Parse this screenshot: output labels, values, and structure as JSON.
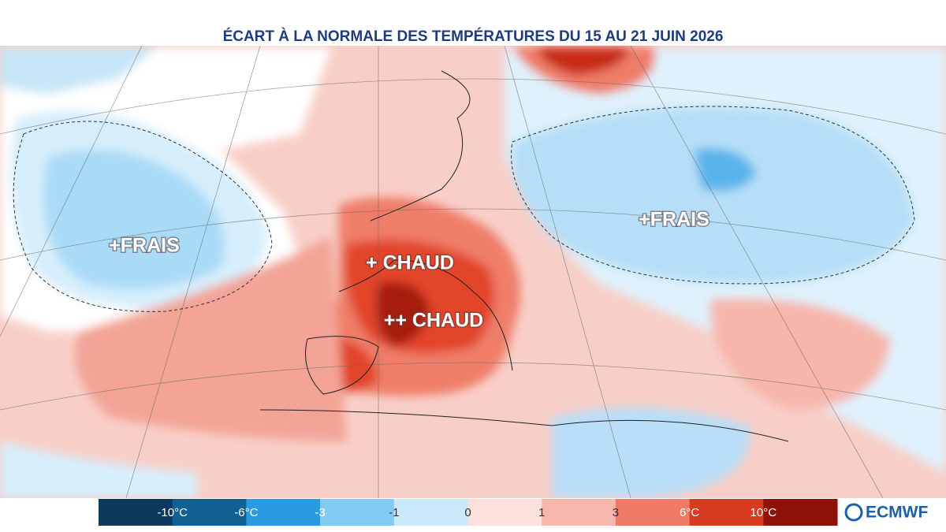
{
  "header": {
    "title": "ÉCART À LA NORMALE DES TEMPÉRATURES DU 15 AU 21 JUIN 2026"
  },
  "map": {
    "annotations": [
      "+FRAIS",
      "+ CHAUD",
      "++ CHAUD",
      "+FRAIS"
    ]
  },
  "legend": {
    "labels": [
      "-10°C",
      "-6°C",
      "-3",
      "-1",
      "0",
      "1",
      "3",
      "6°C",
      "10°C"
    ],
    "colors": [
      "#0d3a5c",
      "#125f92",
      "#2a9be0",
      "#84cbf3",
      "#c9e9fb",
      "#fbe0dc",
      "#f7b7ad",
      "#ef7a66",
      "#d93a22",
      "#8f1208"
    ]
  },
  "logo": {
    "text": "ECMWF"
  }
}
